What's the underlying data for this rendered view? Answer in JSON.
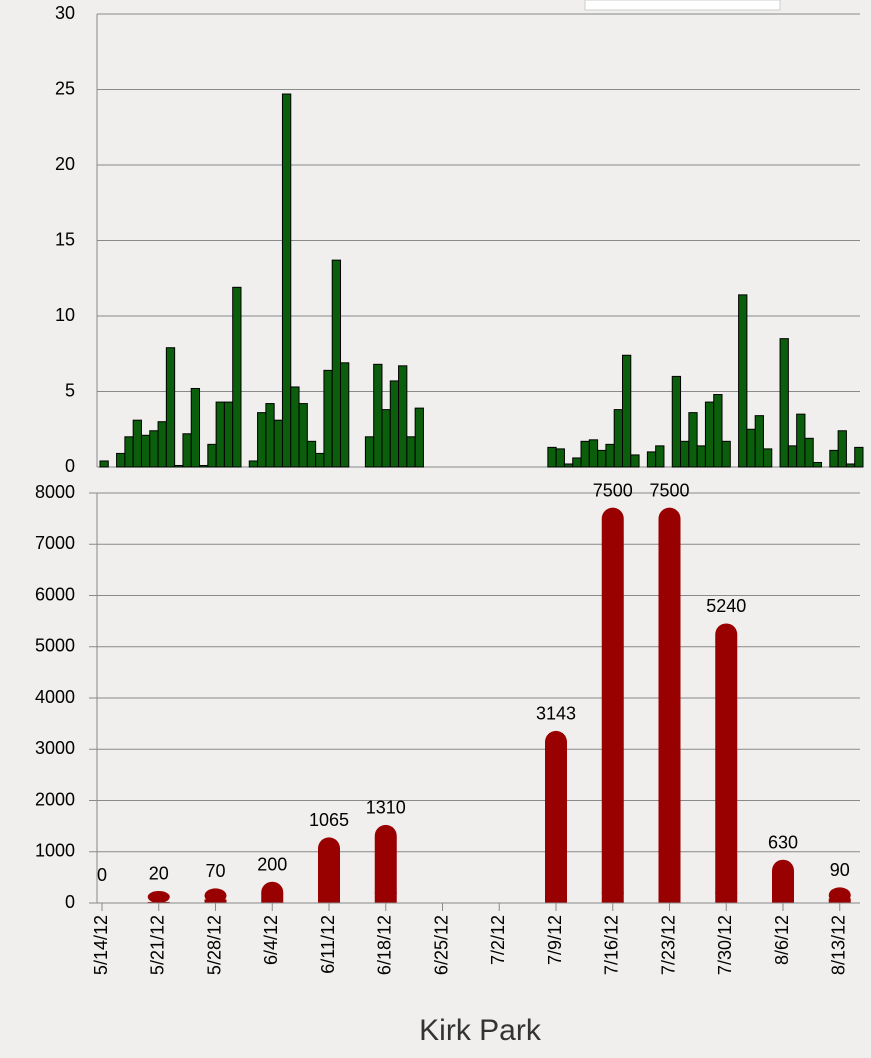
{
  "chart_data": [
    {
      "type": "bar",
      "color": "#0b5e0b",
      "ylim": [
        0,
        30
      ],
      "yticks": [
        0,
        5,
        10,
        15,
        20,
        25,
        30
      ],
      "grid": true,
      "values": [
        0.4,
        0,
        0.9,
        2.0,
        3.1,
        2.1,
        2.4,
        3.0,
        7.9,
        0.1,
        2.2,
        5.2,
        0.1,
        1.5,
        4.3,
        4.3,
        11.9,
        null,
        0.4,
        3.6,
        4.2,
        3.1,
        24.7,
        5.3,
        4.2,
        1.7,
        0.9,
        6.4,
        13.7,
        6.9,
        null,
        null,
        2.0,
        6.8,
        3.8,
        5.7,
        6.7,
        2.0,
        3.9,
        null,
        null,
        null,
        null,
        null,
        null,
        null,
        null,
        null,
        null,
        null,
        null,
        null,
        null,
        null,
        1.3,
        1.2,
        0.2,
        0.6,
        1.7,
        1.8,
        1.1,
        1.5,
        3.8,
        7.4,
        0.8,
        null,
        1.0,
        1.4,
        null,
        6.0,
        1.7,
        3.6,
        1.4,
        4.3,
        4.8,
        1.7,
        null,
        11.4,
        2.5,
        3.4,
        1.2,
        null,
        8.5,
        1.4,
        3.5,
        1.9,
        0.3,
        null,
        1.1,
        2.4,
        0.2,
        1.3
      ]
    },
    {
      "type": "rounded-bar",
      "title": "Kirk Park",
      "color": "#990000",
      "ylim": [
        0,
        8000
      ],
      "yticks": [
        0,
        1000,
        2000,
        3000,
        4000,
        5000,
        6000,
        7000,
        8000
      ],
      "grid": true,
      "categories": [
        "5/14/12",
        "5/21/12",
        "5/28/12",
        "6/4/12",
        "6/11/12",
        "6/18/12",
        "6/25/12",
        "7/2/12",
        "7/9/12",
        "7/16/12",
        "7/23/12",
        "7/30/12",
        "8/6/12",
        "8/13/12"
      ],
      "values": [
        0,
        20,
        70,
        200,
        1065,
        1310,
        null,
        null,
        3143,
        7500,
        7500,
        5240,
        630,
        90
      ]
    }
  ]
}
